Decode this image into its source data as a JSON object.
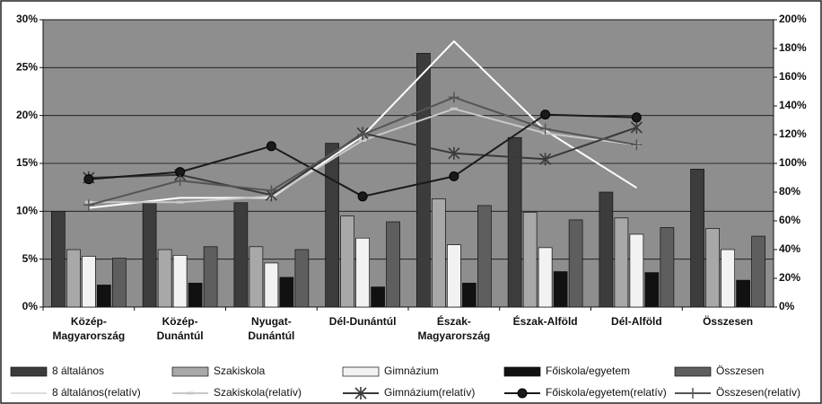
{
  "chart_data": {
    "type": "bar",
    "categories": [
      "Közép-\nMagyarország",
      "Közép-\nDunántúl",
      "Nyugat-\nDunántúl",
      "Dél-Dunántúl",
      "Észak-\nMagyarország",
      "Észak-Alföld",
      "Dél-Alföld",
      "Összesen"
    ],
    "ylim": [
      0,
      30
    ],
    "yticks": [
      {
        "value": 0,
        "label": "0%"
      },
      {
        "value": 5,
        "label": "5%"
      },
      {
        "value": 10,
        "label": "10%"
      },
      {
        "value": 15,
        "label": "15%"
      },
      {
        "value": 20,
        "label": "20%"
      },
      {
        "value": 25,
        "label": "25%"
      },
      {
        "value": 30,
        "label": "30%"
      }
    ],
    "y2lim": [
      0,
      200
    ],
    "y2ticks": [
      {
        "value": 0,
        "label": "0%"
      },
      {
        "value": 20,
        "label": "20%"
      },
      {
        "value": 40,
        "label": "40%"
      },
      {
        "value": 60,
        "label": "60%"
      },
      {
        "value": 80,
        "label": "80%"
      },
      {
        "value": 100,
        "label": "100%"
      },
      {
        "value": 120,
        "label": "120%"
      },
      {
        "value": 140,
        "label": "140%"
      },
      {
        "value": 160,
        "label": "160%"
      },
      {
        "value": 180,
        "label": "180%"
      },
      {
        "value": 200,
        "label": "200%"
      }
    ],
    "grid": true,
    "series": [
      {
        "name": "8 általános",
        "type": "bar",
        "color": "#3c3c3c",
        "values": [
          10.0,
          11.0,
          10.9,
          17.1,
          26.5,
          17.7,
          12.0,
          14.4
        ]
      },
      {
        "name": "Szakiskola",
        "type": "bar",
        "color": "#a8a8a8",
        "values": [
          6.0,
          6.0,
          6.3,
          9.5,
          11.3,
          9.9,
          9.3,
          8.2
        ]
      },
      {
        "name": "Gimnázium",
        "type": "bar",
        "color": "#f2f2f2",
        "values": [
          5.3,
          5.4,
          4.6,
          7.2,
          6.5,
          6.2,
          7.6,
          6.0
        ]
      },
      {
        "name": "Főiskola/egyetem",
        "type": "bar",
        "color": "#111111",
        "values": [
          2.3,
          2.5,
          3.1,
          2.1,
          2.5,
          3.7,
          3.6,
          2.8
        ]
      },
      {
        "name": "Összesen",
        "type": "bar",
        "color": "#5e5e5e",
        "values": [
          5.1,
          6.3,
          6.0,
          8.9,
          10.6,
          9.1,
          8.3,
          7.4
        ]
      },
      {
        "name": "8 általános(relatív)",
        "type": "line",
        "axis": "y2",
        "color": "#ffffff",
        "marker": "none",
        "values": [
          69,
          76,
          76,
          119,
          185,
          123,
          83,
          null
        ]
      },
      {
        "name": "Szakiskola(relatív)",
        "type": "line",
        "axis": "y2",
        "color": "#c8c8c8",
        "marker": "dash",
        "values": [
          73,
          73,
          77,
          116,
          138,
          121,
          113,
          null
        ]
      },
      {
        "name": "Gimnázium(relatív)",
        "type": "line",
        "axis": "y2",
        "color": "#3a3a3a",
        "marker": "star",
        "values": [
          90,
          92,
          78,
          121,
          107,
          103,
          125,
          null
        ]
      },
      {
        "name": "Főiskola/egyetem(relatív)",
        "type": "line",
        "axis": "y2",
        "color": "#1a1a1a",
        "marker": "circle",
        "values": [
          89,
          94,
          112,
          77,
          91,
          134,
          132,
          null
        ]
      },
      {
        "name": "Összesen(relatív)",
        "type": "line",
        "axis": "y2",
        "color": "#555555",
        "marker": "plus",
        "values": [
          71,
          88,
          81,
          120,
          146,
          124,
          113,
          null
        ]
      }
    ]
  }
}
